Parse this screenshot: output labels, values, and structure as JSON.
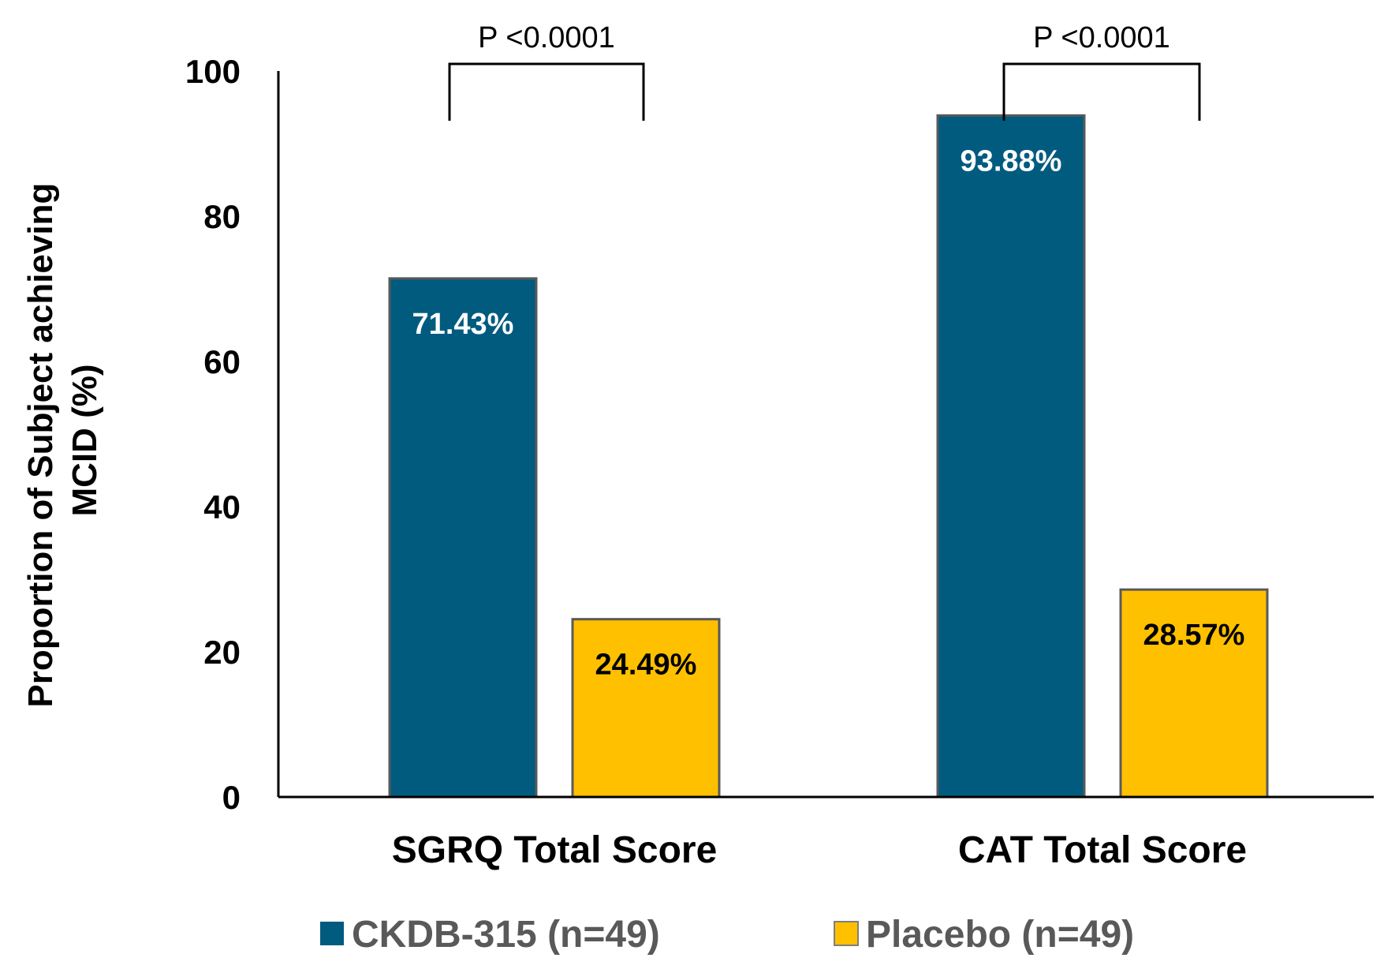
{
  "chart_data": {
    "type": "bar",
    "categories": [
      "SGRQ Total Score",
      "CAT Total Score"
    ],
    "series": [
      {
        "name": "CKDB-315 (n=49)",
        "values": [
          71.43,
          93.88
        ],
        "labels": [
          "71.43%",
          "93.88%"
        ],
        "color": "#005b7f",
        "label_color": "#ffffff"
      },
      {
        "name": "Placebo (n=49)",
        "values": [
          24.49,
          28.57
        ],
        "labels": [
          "24.49%",
          "28.57%"
        ],
        "color": "#ffc000",
        "label_color": "#000000"
      }
    ],
    "ylabel_lines": [
      "Proportion of Subject achieving",
      "MCID (%)"
    ],
    "xlabel": "",
    "ylim": [
      0,
      100
    ],
    "yticks": [
      "0",
      "20",
      "40",
      "60",
      "80",
      "100"
    ],
    "annotations": [
      "P <0.0001",
      "P <0.0001"
    ],
    "legend_position": "bottom",
    "grid": false
  }
}
